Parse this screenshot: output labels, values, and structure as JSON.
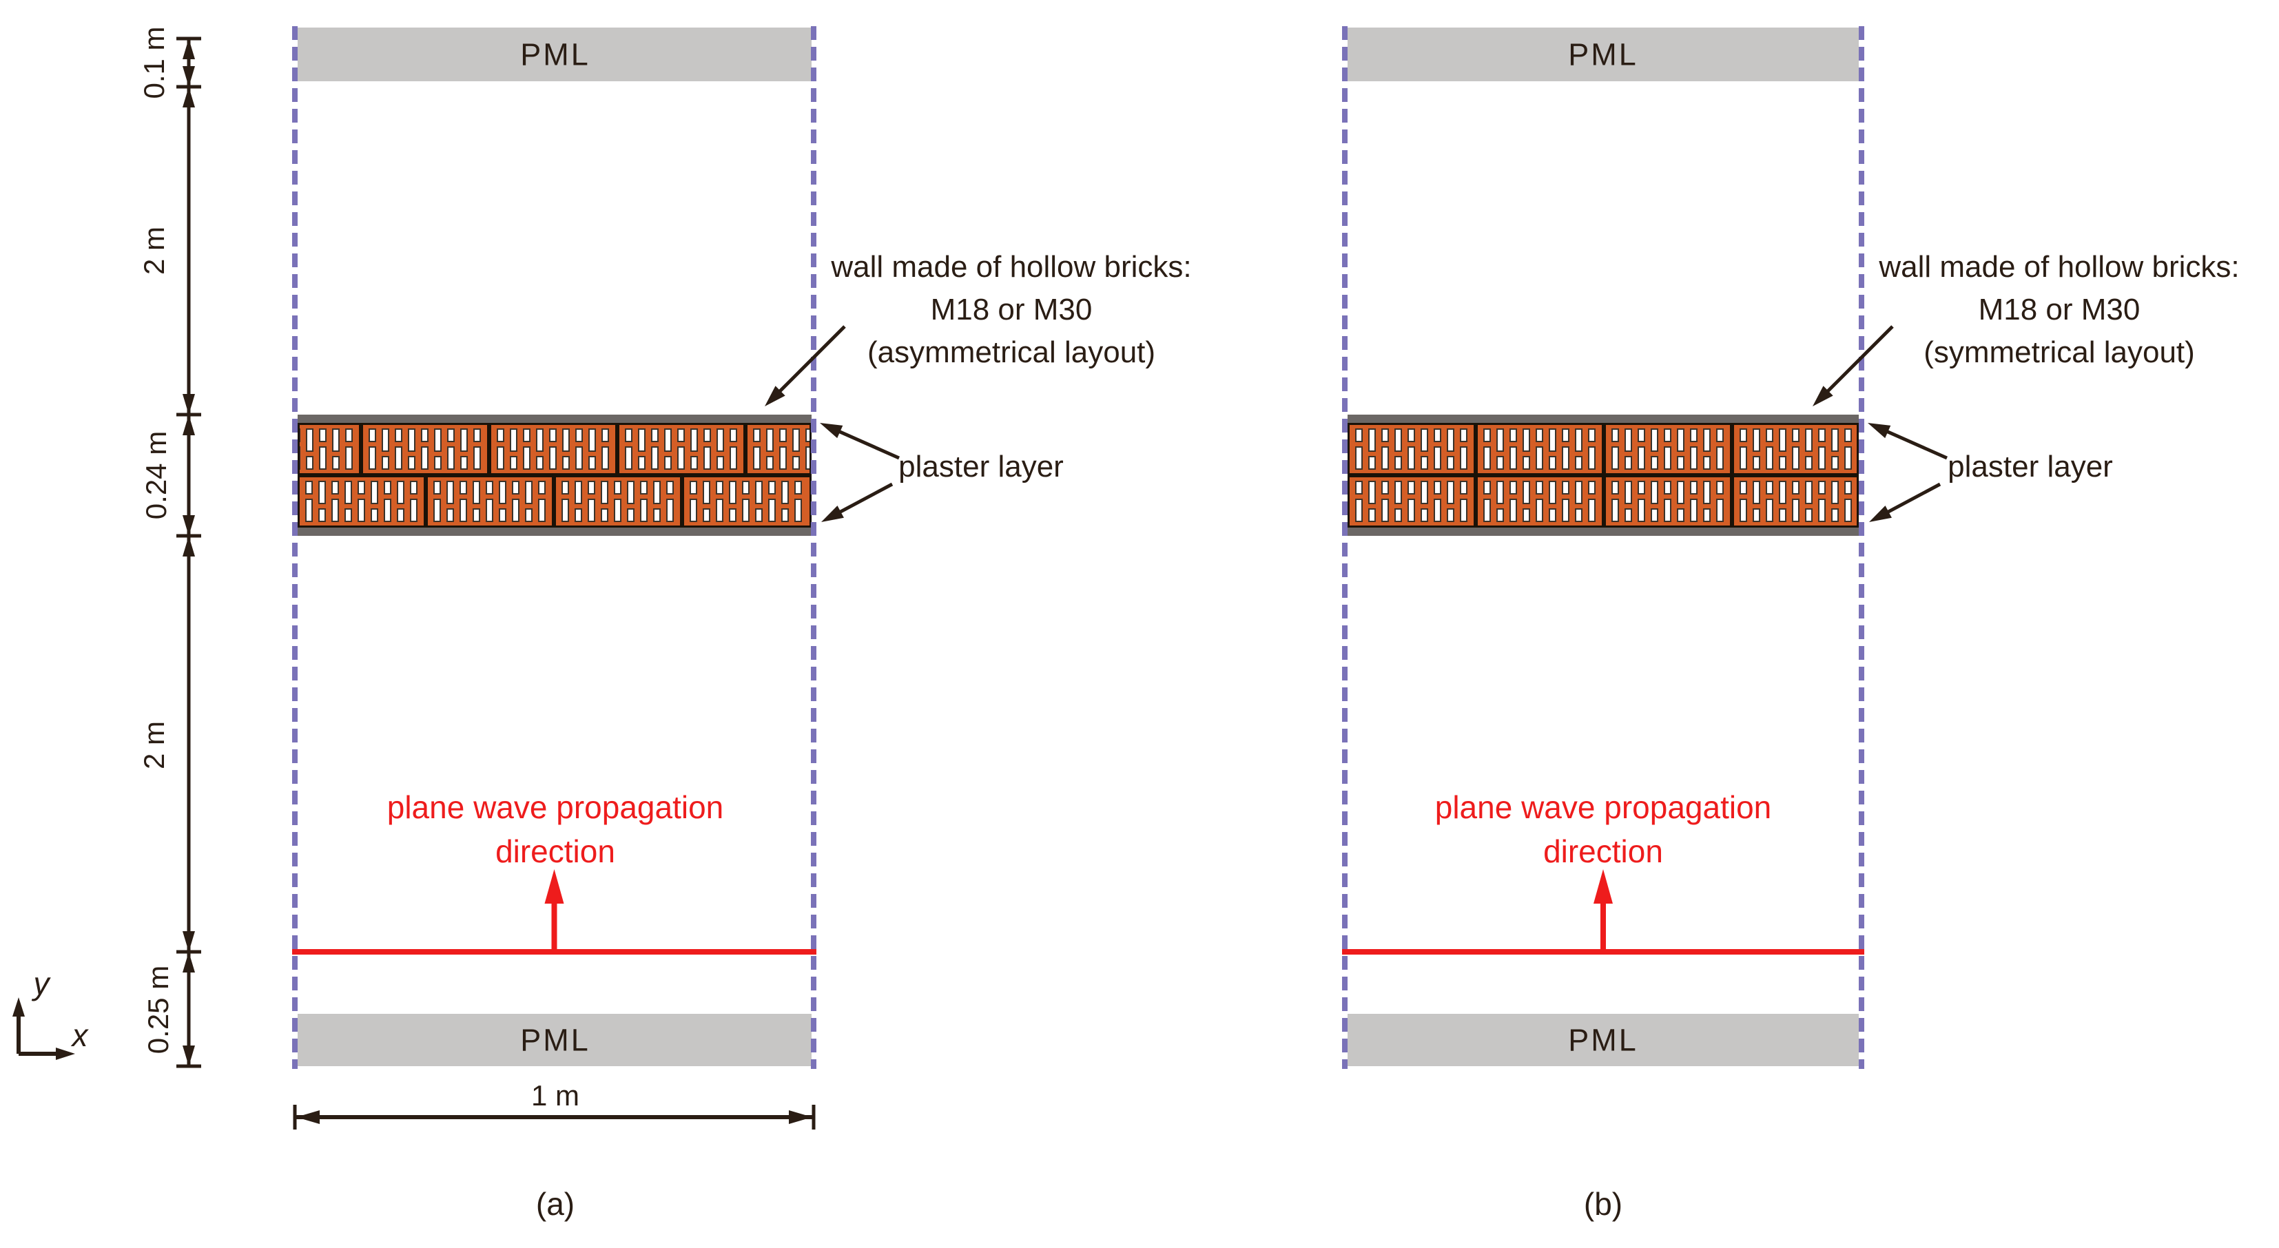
{
  "figure": {
    "axis": {
      "x_label": "x",
      "y_label": "y"
    },
    "dimensions": {
      "pml_offset_top": "0.1 m",
      "air_above_wall": "2 m",
      "wall_thickness": "0.24 m",
      "air_below_wall": "2 m",
      "source_offset": "0.25 m",
      "domain_width": "1 m"
    },
    "panels": [
      {
        "caption": "(a)",
        "pml_top_label": "PML",
        "pml_bottom_label": "PML",
        "wave_note_line1": "plane wave propagation",
        "wave_note_line2": "direction",
        "wall_note_line1": "wall made of hollow bricks:",
        "wall_note_line2": "M18 or M30",
        "wall_note_line3": "(asymmetrical layout)",
        "plaster_note": "plaster layer",
        "brick_layout": "asymmetrical"
      },
      {
        "caption": "(b)",
        "pml_top_label": "PML",
        "pml_bottom_label": "PML",
        "wave_note_line1": "plane wave propagation",
        "wave_note_line2": "direction",
        "wall_note_line1": "wall made of hollow bricks:",
        "wall_note_line2": "M18 or M30",
        "wall_note_line3": "(symmetrical layout)",
        "plaster_note": "plaster layer",
        "brick_layout": "symmetrical"
      }
    ],
    "colors": {
      "brick": "#d45e26",
      "plaster": "#6b6765",
      "pml": "#c7c6c5",
      "boundary": "#7a72b8",
      "wave": "#ee1c1c",
      "ink": "#2a1d14"
    }
  }
}
